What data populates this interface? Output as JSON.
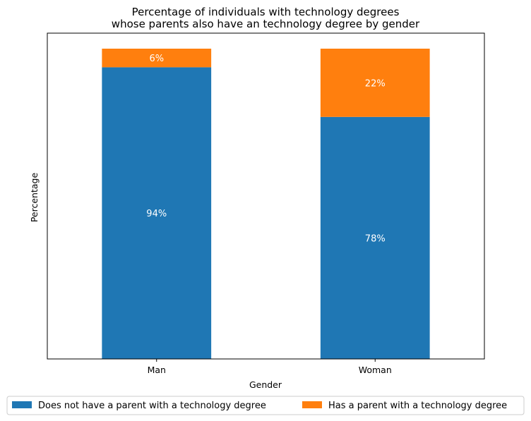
{
  "chart_data": {
    "type": "bar",
    "stacked": true,
    "title": "Percentage of individuals with technology degrees",
    "subtitle": "whose parents also have an technology degree by gender",
    "xlabel": "Gender",
    "ylabel": "Percentage",
    "categories": [
      "Man",
      "Woman"
    ],
    "ylim": [
      0,
      105
    ],
    "grid": false,
    "series": [
      {
        "name": "Does not have a parent with a technology degree",
        "color": "#1f77b4",
        "values": [
          94,
          78
        ],
        "labels": [
          "94%",
          "78%"
        ]
      },
      {
        "name": "Has a parent with a technology degree",
        "color": "#ff7f0e",
        "values": [
          6,
          22
        ],
        "labels": [
          "6%",
          "22%"
        ]
      }
    ],
    "legend_position": "bottom-center"
  }
}
